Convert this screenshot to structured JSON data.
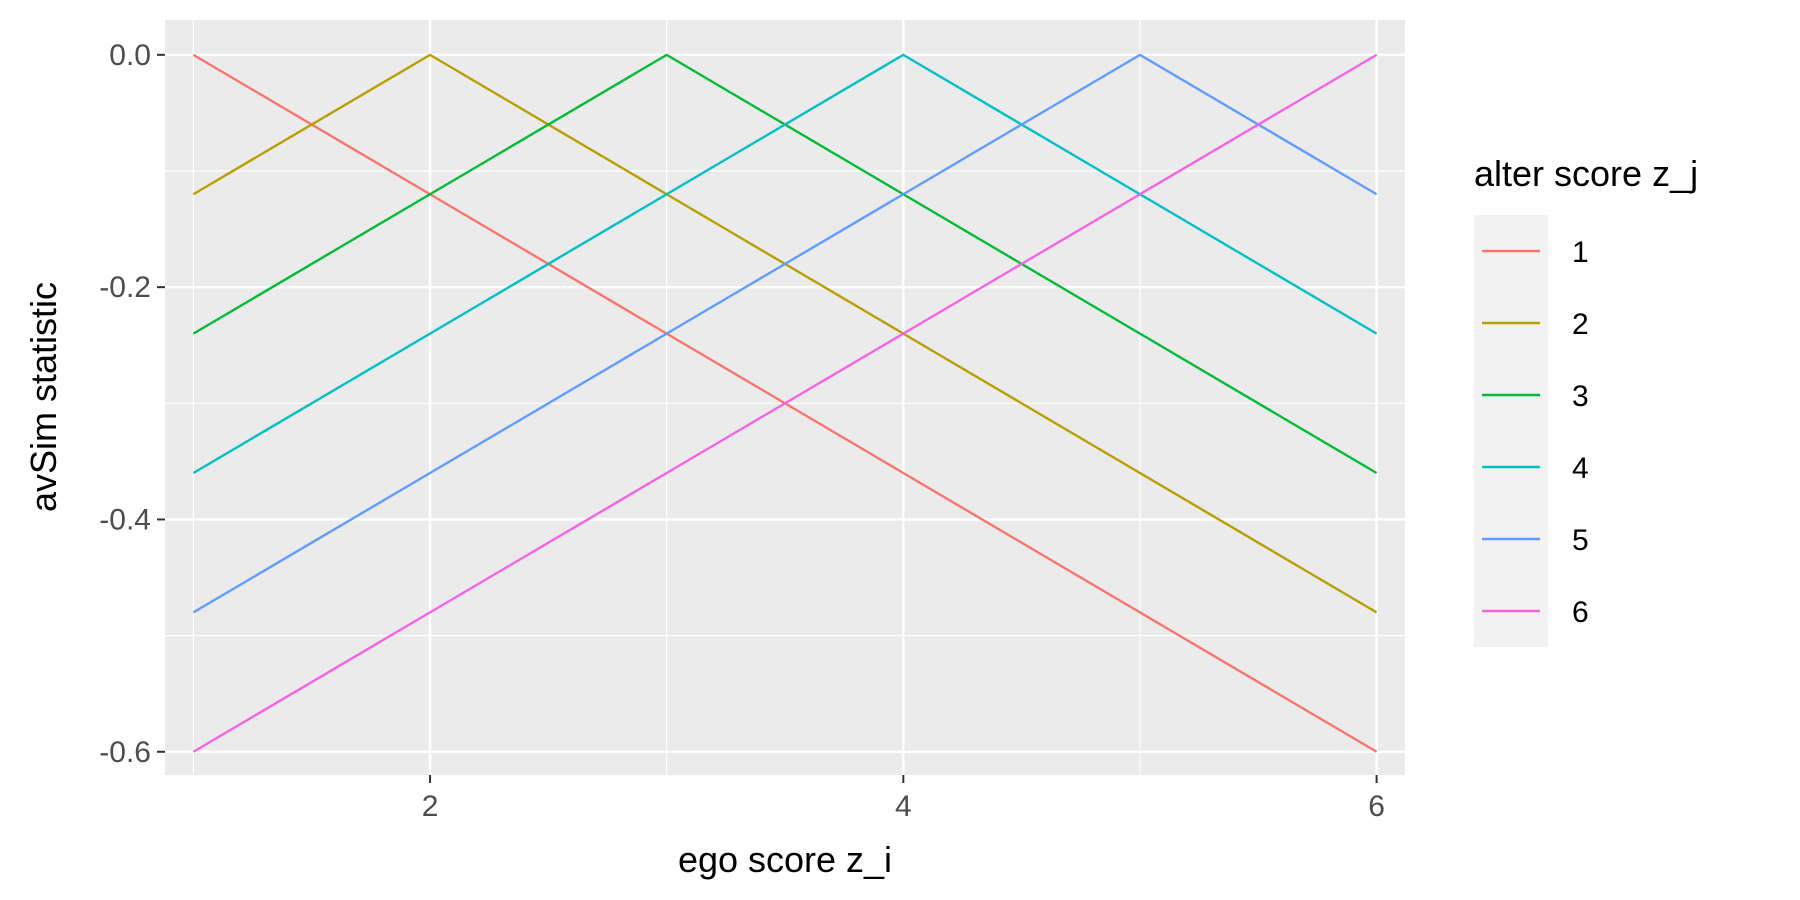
{
  "chart_data": {
    "type": "line",
    "xlabel": "ego score z_i",
    "ylabel": "avSim statistic",
    "xlim": [
      0.88,
      6.12
    ],
    "ylim": [
      -0.62,
      0.03
    ],
    "x_ticks": [
      {
        "value": 2,
        "label": "2"
      },
      {
        "value": 4,
        "label": "4"
      },
      {
        "value": 6,
        "label": "6"
      }
    ],
    "x_minor_ticks": [
      1,
      3,
      5
    ],
    "y_ticks": [
      {
        "value": 0.0,
        "label": "0.0"
      },
      {
        "value": -0.2,
        "label": "-0.2"
      },
      {
        "value": -0.4,
        "label": "-0.4"
      },
      {
        "value": -0.6,
        "label": "-0.6"
      }
    ],
    "y_minor_ticks": [
      -0.1,
      -0.3,
      -0.5
    ],
    "grid": true,
    "panel_background": "#ebebeb",
    "legend": {
      "title": "alter score z_j",
      "placement": "right"
    },
    "x": [
      1,
      2,
      3,
      4,
      5,
      6
    ],
    "series": [
      {
        "name": "1",
        "color": "#F8766D",
        "values": [
          0.0,
          -0.12,
          -0.24,
          -0.36,
          -0.48,
          -0.6
        ]
      },
      {
        "name": "2",
        "color": "#B79F00",
        "values": [
          -0.12,
          0.0,
          -0.12,
          -0.24,
          -0.36,
          -0.48
        ]
      },
      {
        "name": "3",
        "color": "#00BA38",
        "values": [
          -0.24,
          -0.12,
          0.0,
          -0.12,
          -0.24,
          -0.36
        ]
      },
      {
        "name": "4",
        "color": "#00BFC4",
        "values": [
          -0.36,
          -0.24,
          -0.12,
          0.0,
          -0.12,
          -0.24
        ]
      },
      {
        "name": "5",
        "color": "#619CFF",
        "values": [
          -0.48,
          -0.36,
          -0.24,
          -0.12,
          0.0,
          -0.12
        ]
      },
      {
        "name": "6",
        "color": "#F564E3",
        "values": [
          -0.6,
          -0.48,
          -0.36,
          -0.24,
          -0.12,
          0.0
        ]
      }
    ]
  }
}
